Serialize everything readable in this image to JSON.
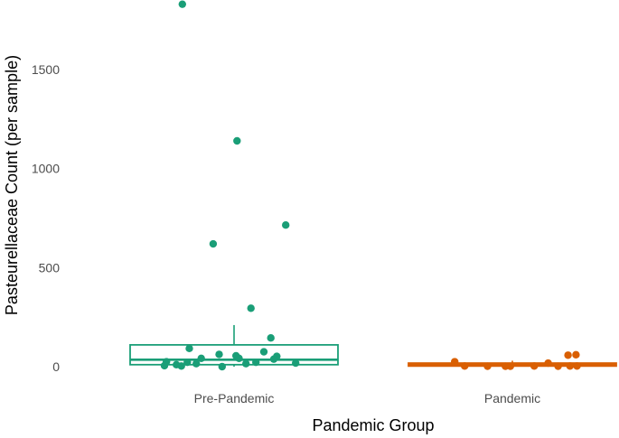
{
  "chart_data": {
    "type": "boxplot",
    "xlabel": "Pandemic Group",
    "ylabel": "Pasteurellaceae Count (per sample)",
    "ylim": [
      0,
      1830
    ],
    "y_ticks": [
      0,
      500,
      1000,
      1500
    ],
    "y_tick_labels": [
      "0",
      "500",
      "1000",
      "1500"
    ],
    "categories": [
      "Pre-Pandemic",
      "Pandemic"
    ],
    "grid": false,
    "legend": "none",
    "groups": [
      {
        "name": "Pre-Pandemic",
        "color": "#1a9e77",
        "box": {
          "whisker_low": 0,
          "q1": 10,
          "median": 35,
          "q3": 110,
          "whisker_high": 210
        },
        "points": [
          {
            "x": -0.52,
            "y": 1830
          },
          {
            "x": 0.03,
            "y": 1140
          },
          {
            "x": 0.52,
            "y": 715
          },
          {
            "x": -0.21,
            "y": 620
          },
          {
            "x": 0.17,
            "y": 295
          },
          {
            "x": 0.37,
            "y": 145
          },
          {
            "x": -0.45,
            "y": 92
          },
          {
            "x": 0.3,
            "y": 75
          },
          {
            "x": -0.15,
            "y": 62
          },
          {
            "x": 0.02,
            "y": 55
          },
          {
            "x": 0.43,
            "y": 52
          },
          {
            "x": -0.33,
            "y": 42
          },
          {
            "x": 0.05,
            "y": 42
          },
          {
            "x": 0.4,
            "y": 38
          },
          {
            "x": -0.68,
            "y": 25
          },
          {
            "x": -0.47,
            "y": 22
          },
          {
            "x": 0.22,
            "y": 22
          },
          {
            "x": 0.62,
            "y": 18
          },
          {
            "x": -0.38,
            "y": 15
          },
          {
            "x": 0.12,
            "y": 15
          },
          {
            "x": -0.58,
            "y": 10
          },
          {
            "x": -0.7,
            "y": 5
          },
          {
            "x": -0.53,
            "y": 3
          },
          {
            "x": -0.12,
            "y": 0
          }
        ]
      },
      {
        "name": "Pandemic",
        "color": "#d95f02",
        "box": {
          "whisker_low": 0,
          "q1": 3,
          "median": 10,
          "q3": 18,
          "whisker_high": 30
        },
        "points": [
          {
            "x": -0.58,
            "y": 25
          },
          {
            "x": -0.48,
            "y": 3
          },
          {
            "x": -0.25,
            "y": 2
          },
          {
            "x": -0.07,
            "y": 2
          },
          {
            "x": -0.02,
            "y": 2
          },
          {
            "x": 0.22,
            "y": 3
          },
          {
            "x": 0.36,
            "y": 18
          },
          {
            "x": 0.46,
            "y": 2
          },
          {
            "x": 0.56,
            "y": 58
          },
          {
            "x": 0.64,
            "y": 60
          },
          {
            "x": 0.58,
            "y": 3
          },
          {
            "x": 0.65,
            "y": 3
          }
        ]
      }
    ]
  }
}
